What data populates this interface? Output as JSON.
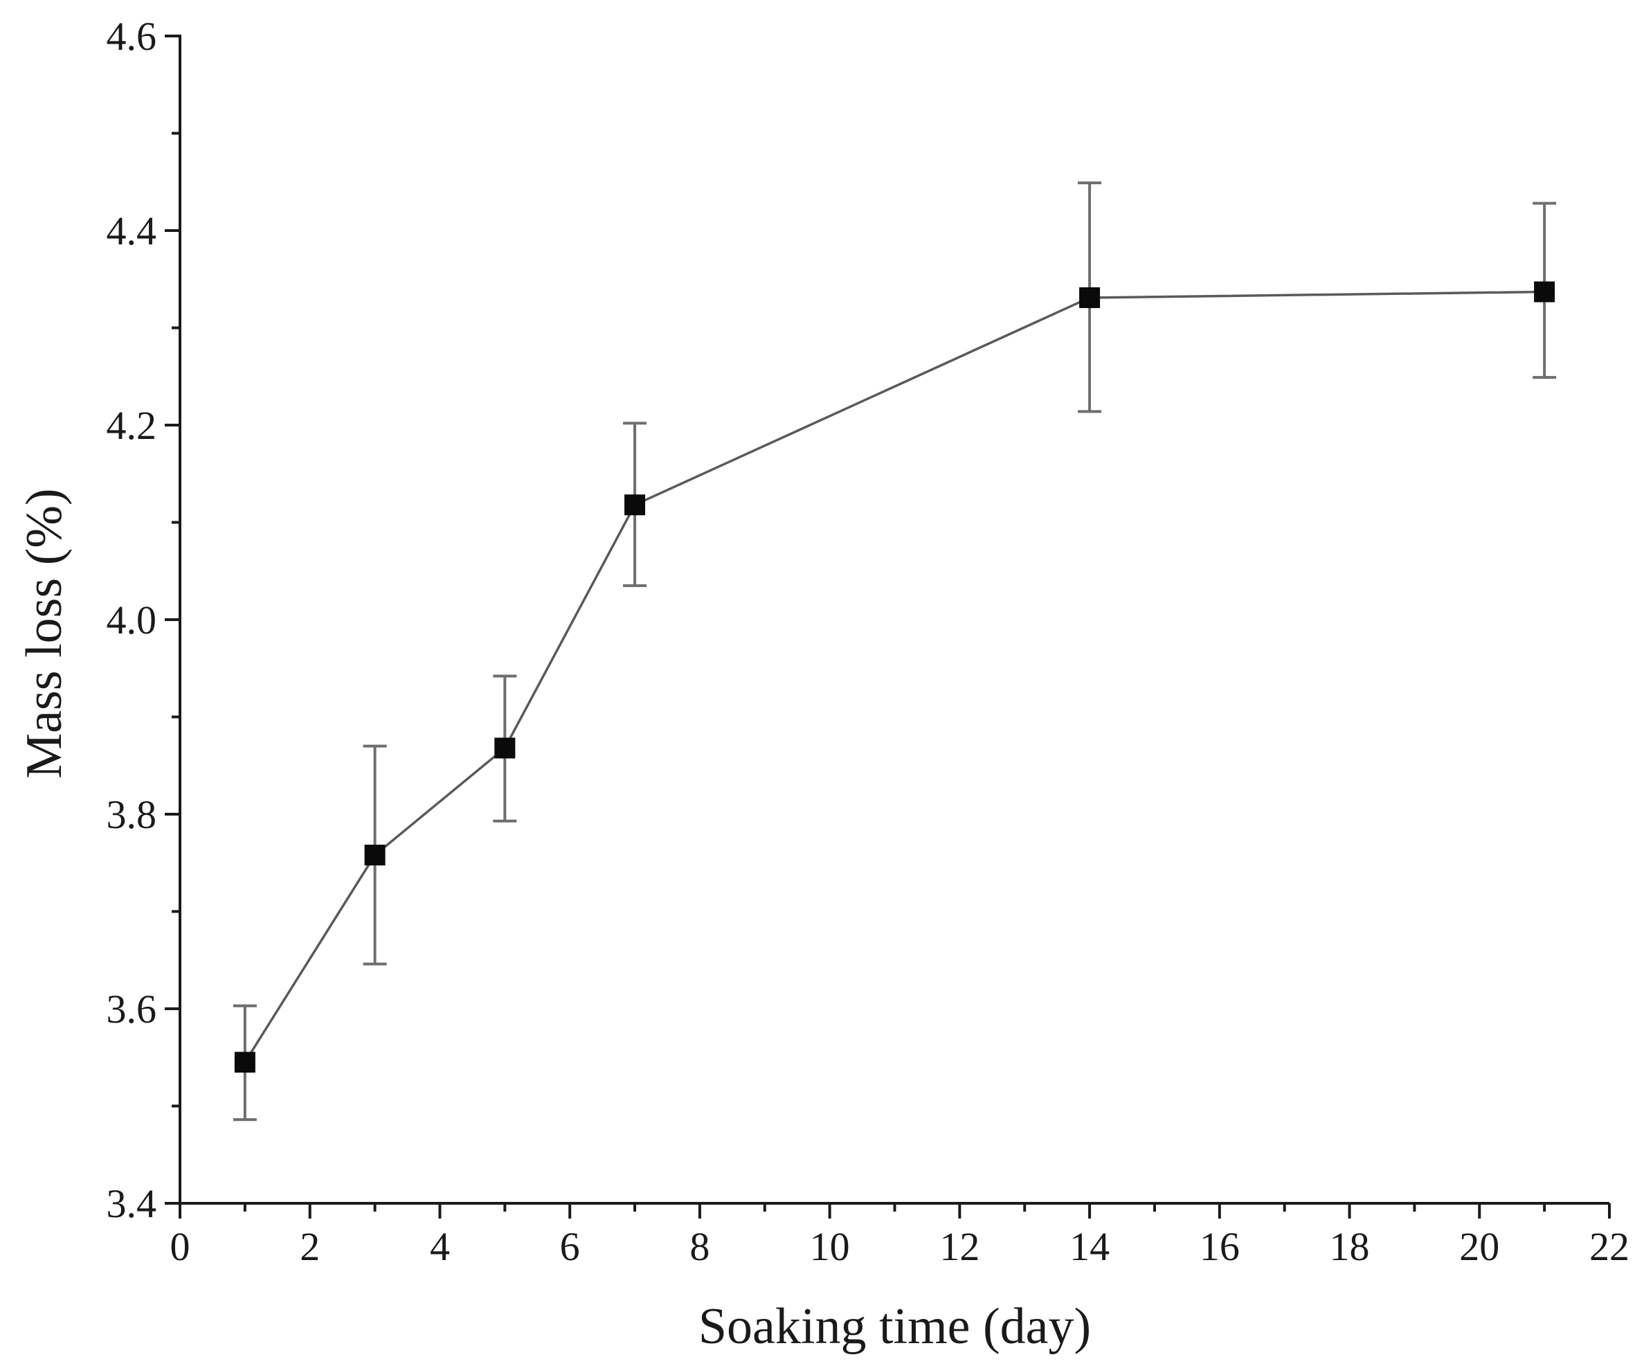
{
  "chart_data": {
    "type": "scatter",
    "title": "",
    "xlabel": "Soaking time (day)",
    "ylabel": "Mass loss (%)",
    "xlim": [
      0,
      22
    ],
    "ylim": [
      3.4,
      4.6
    ],
    "xticks": [
      "0",
      "2",
      "4",
      "6",
      "8",
      "10",
      "12",
      "14",
      "16",
      "18",
      "20",
      "22"
    ],
    "yticks": [
      "3.4",
      "3.6",
      "3.8",
      "4.0",
      "4.2",
      "4.4",
      "4.6"
    ],
    "grid": false,
    "series": [
      {
        "name": "Mass loss",
        "marker": "square",
        "connected": true,
        "color": "#0a0a0a",
        "x": [
          1,
          3,
          5,
          7,
          14,
          21
        ],
        "y": [
          3.545,
          3.758,
          3.868,
          4.118,
          4.331,
          4.337
        ],
        "err_low": [
          3.486,
          3.646,
          3.793,
          4.035,
          4.214,
          4.249
        ],
        "err_high": [
          3.603,
          3.87,
          3.942,
          4.202,
          4.449,
          4.428
        ]
      }
    ]
  }
}
